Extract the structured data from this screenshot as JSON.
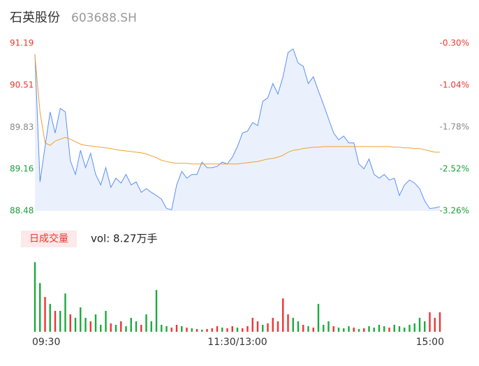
{
  "header": {
    "name": "石英股份",
    "code": "603688.SH"
  },
  "chart_data": [
    {
      "type": "line",
      "x": [
        0,
        3,
        6,
        9,
        12,
        15,
        18,
        21,
        24,
        27,
        30,
        33,
        36,
        39,
        42,
        45,
        48,
        51,
        54,
        57,
        60,
        63,
        66,
        69,
        72,
        75,
        78,
        81,
        84,
        87,
        90,
        93,
        96,
        99,
        102,
        105,
        108,
        111,
        114,
        117,
        120,
        123,
        126,
        129,
        132,
        135,
        138,
        141,
        144,
        147,
        150,
        153,
        156,
        159,
        162,
        165,
        168,
        171,
        174,
        177,
        180,
        183,
        186,
        189,
        192,
        195,
        198,
        201,
        204,
        207,
        210,
        213,
        216,
        219,
        222,
        225,
        228,
        231,
        234,
        237,
        240
      ],
      "series": [
        {
          "color": "#5b8ff9",
          "values": [
            91.01,
            88.95,
            89.52,
            90.08,
            89.74,
            90.14,
            90.08,
            89.29,
            89.07,
            89.46,
            89.18,
            89.41,
            89.07,
            88.9,
            89.18,
            88.86,
            89.01,
            88.93,
            89.07,
            88.9,
            88.95,
            88.78,
            88.84,
            88.78,
            88.73,
            88.67,
            88.52,
            88.5,
            88.9,
            89.12,
            89.01,
            89.07,
            89.07,
            89.27,
            89.18,
            89.18,
            89.2,
            89.27,
            89.24,
            89.35,
            89.52,
            89.74,
            89.77,
            89.91,
            89.86,
            90.25,
            90.31,
            90.54,
            90.37,
            90.65,
            91.04,
            91.1,
            90.87,
            90.82,
            90.54,
            90.65,
            90.42,
            90.2,
            89.97,
            89.74,
            89.63,
            89.69,
            89.58,
            89.58,
            89.24,
            89.16,
            89.32,
            89.07,
            89.01,
            89.07,
            88.98,
            89.01,
            88.73,
            88.9,
            88.98,
            88.93,
            88.84,
            88.64,
            88.52,
            88.53,
            88.55
          ]
        },
        {
          "color": "#f0a030",
          "values": [
            90.99,
            90.08,
            89.58,
            89.54,
            89.61,
            89.64,
            89.67,
            89.64,
            89.6,
            89.56,
            89.54,
            89.53,
            89.52,
            89.51,
            89.5,
            89.49,
            89.47,
            89.46,
            89.45,
            89.44,
            89.43,
            89.42,
            89.4,
            89.37,
            89.34,
            89.3,
            89.28,
            89.26,
            89.25,
            89.25,
            89.25,
            89.24,
            89.24,
            89.24,
            89.24,
            89.24,
            89.24,
            89.24,
            89.24,
            89.24,
            89.24,
            89.25,
            89.26,
            89.27,
            89.28,
            89.3,
            89.32,
            89.33,
            89.35,
            89.38,
            89.43,
            89.46,
            89.47,
            89.49,
            89.5,
            89.51,
            89.51,
            89.52,
            89.52,
            89.52,
            89.52,
            89.52,
            89.52,
            89.52,
            89.52,
            89.52,
            89.52,
            89.52,
            89.52,
            89.52,
            89.52,
            89.51,
            89.51,
            89.5,
            89.5,
            89.49,
            89.49,
            89.47,
            89.45,
            89.43,
            89.43
          ]
        }
      ],
      "xlim": [
        0,
        240
      ],
      "ylim": [
        88.48,
        91.19
      ],
      "yticks": [
        91.19,
        90.51,
        89.83,
        89.16,
        88.48
      ],
      "ytick_colors": [
        "#e8382f",
        "#e8382f",
        "#888888",
        "#1a9e3a",
        "#1a9e3a"
      ],
      "y2lim": [
        -3.26,
        -0.3
      ],
      "y2ticks": [
        {
          "value": -0.3,
          "label": "-0.30%"
        },
        {
          "value": -1.04,
          "label": "-1.04%"
        },
        {
          "value": -1.78,
          "label": "-1.78%"
        },
        {
          "value": -2.52,
          "label": "-2.52%"
        },
        {
          "value": -3.26,
          "label": "-3.26%"
        }
      ],
      "y2tick_colors": [
        "#e8382f",
        "#e8382f",
        "#888888",
        "#1a9e3a",
        "#1a9e3a"
      ],
      "area_color": "#eaf1fc"
    },
    {
      "type": "bar",
      "title": "日成交量",
      "subtitle": "vol: 8.27万手",
      "x": [
        0,
        3,
        6,
        9,
        12,
        15,
        18,
        21,
        24,
        27,
        30,
        33,
        36,
        39,
        42,
        45,
        48,
        51,
        54,
        57,
        60,
        63,
        66,
        69,
        72,
        75,
        78,
        81,
        84,
        87,
        90,
        93,
        96,
        99,
        102,
        105,
        108,
        111,
        114,
        117,
        120,
        123,
        126,
        129,
        132,
        135,
        138,
        141,
        144,
        147,
        150,
        153,
        156,
        159,
        162,
        165,
        168,
        171,
        174,
        177,
        180,
        183,
        186,
        189,
        192,
        195,
        198,
        201,
        204,
        207,
        210,
        213,
        216,
        219,
        222,
        225,
        228,
        231,
        234,
        237,
        240
      ],
      "values": [
        3000,
        2100,
        1500,
        1200,
        900,
        900,
        1650,
        750,
        600,
        1050,
        600,
        450,
        750,
        300,
        900,
        360,
        300,
        450,
        240,
        600,
        450,
        300,
        750,
        450,
        1800,
        300,
        240,
        180,
        300,
        240,
        180,
        150,
        120,
        90,
        120,
        150,
        240,
        180,
        150,
        240,
        180,
        150,
        240,
        600,
        450,
        300,
        360,
        600,
        450,
        1440,
        750,
        600,
        450,
        300,
        240,
        180,
        1200,
        300,
        450,
        240,
        180,
        150,
        240,
        180,
        120,
        150,
        240,
        180,
        300,
        240,
        180,
        300,
        240,
        180,
        300,
        360,
        600,
        450,
        840,
        600,
        840
      ],
      "colors": [
        "#1aaa3a",
        "#1aaa3a",
        "#ee3333",
        "#1aaa3a",
        "#ee3333",
        "#1aaa3a",
        "#1aaa3a",
        "#ee3333",
        "#1aaa3a",
        "#1aaa3a",
        "#1aaa3a",
        "#ee3333",
        "#1aaa3a",
        "#1aaa3a",
        "#1aaa3a",
        "#ee3333",
        "#1aaa3a",
        "#ee3333",
        "#1aaa3a",
        "#1aaa3a",
        "#1aaa3a",
        "#ee3333",
        "#1aaa3a",
        "#1aaa3a",
        "#1aaa3a",
        "#1aaa3a",
        "#1aaa3a",
        "#ee3333",
        "#ee3333",
        "#1aaa3a",
        "#ee3333",
        "#1aaa3a",
        "#ee3333",
        "#1aaa3a",
        "#ee3333",
        "#ee3333",
        "#ee3333",
        "#1aaa3a",
        "#ee3333",
        "#ee3333",
        "#1aaa3a",
        "#ee3333",
        "#ee3333",
        "#ee3333",
        "#ee3333",
        "#1aaa3a",
        "#ee3333",
        "#ee3333",
        "#ee3333",
        "#ee3333",
        "#ee3333",
        "#1aaa3a",
        "#1aaa3a",
        "#ee3333",
        "#1aaa3a",
        "#ee3333",
        "#1aaa3a",
        "#1aaa3a",
        "#1aaa3a",
        "#ee3333",
        "#1aaa3a",
        "#1aaa3a",
        "#1aaa3a",
        "#ee3333",
        "#1aaa3a",
        "#ee3333",
        "#1aaa3a",
        "#1aaa3a",
        "#1aaa3a",
        "#1aaa3a",
        "#ee3333",
        "#1aaa3a",
        "#1aaa3a",
        "#1aaa3a",
        "#1aaa3a",
        "#1aaa3a",
        "#1aaa3a",
        "#1aaa3a",
        "#ee3333",
        "#ee3333",
        "#ee3333"
      ],
      "xlim": [
        0,
        240
      ],
      "ylim": [
        0,
        3100
      ],
      "xticks": [
        {
          "value": 0,
          "label": "09:30"
        },
        {
          "value": 120,
          "label": "11:30/13:00"
        },
        {
          "value": 240,
          "label": "15:00"
        }
      ]
    }
  ]
}
